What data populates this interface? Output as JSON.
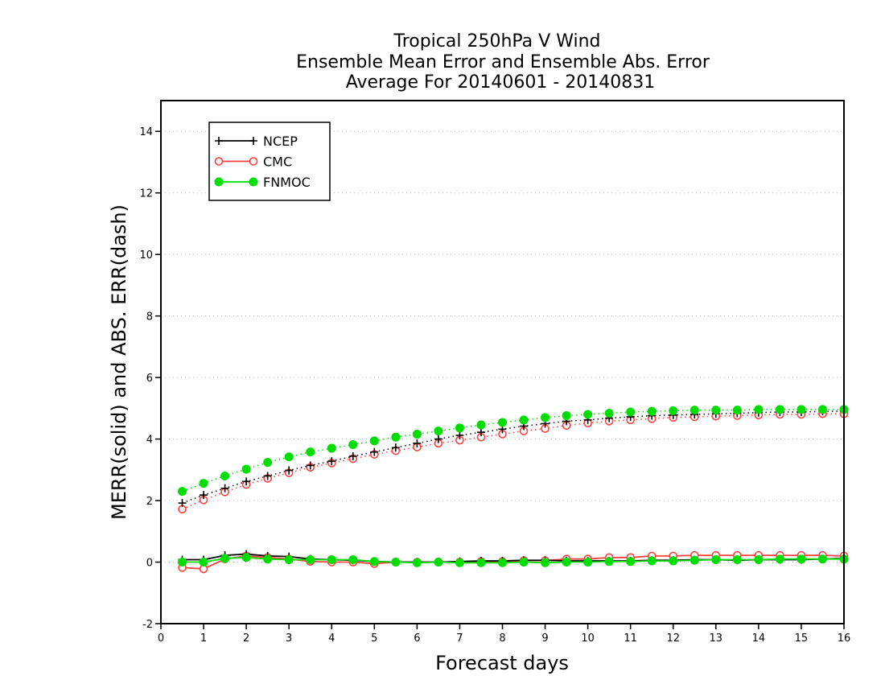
{
  "chart_data": {
    "type": "line",
    "title": [
      "Tropical 250hPa V Wind",
      "Ensemble Mean Error and Ensemble Abs. Error",
      "Average For 20140601 - 20140831"
    ],
    "xlabel": "Forecast days",
    "ylabel": "MERR(solid) and ABS. ERR(dash)",
    "xlim": [
      0,
      16
    ],
    "ylim": [
      -2,
      15
    ],
    "xticks": [
      0,
      1,
      2,
      3,
      4,
      5,
      6,
      7,
      8,
      9,
      10,
      11,
      12,
      13,
      14,
      15,
      16
    ],
    "yticks": [
      -2,
      0,
      2,
      4,
      6,
      8,
      10,
      12,
      14
    ],
    "grid": "horizontal dotted",
    "legend_position": "top-left",
    "x": [
      0.5,
      1,
      1.5,
      2,
      2.5,
      3,
      3.5,
      4,
      4.5,
      5,
      5.5,
      6,
      6.5,
      7,
      7.5,
      8,
      8.5,
      9,
      9.5,
      10,
      10.5,
      11,
      11.5,
      12,
      12.5,
      13,
      13.5,
      14,
      14.5,
      15,
      15.5,
      16
    ],
    "series": [
      {
        "name": "NCEP",
        "color": "#000000",
        "marker": "plus",
        "mean_error": [
          0.08,
          0.08,
          0.22,
          0.26,
          0.2,
          0.18,
          0.1,
          0.08,
          0.06,
          0.02,
          0.0,
          0.0,
          0.0,
          0.02,
          0.04,
          0.04,
          0.06,
          0.06,
          0.04,
          0.04,
          0.04,
          0.04,
          0.06,
          0.06,
          0.08,
          0.08,
          0.06,
          0.08,
          0.08,
          0.08,
          0.1,
          0.12
        ],
        "abs_error": [
          1.92,
          2.18,
          2.4,
          2.62,
          2.8,
          2.98,
          3.14,
          3.28,
          3.44,
          3.58,
          3.72,
          3.86,
          4.0,
          4.12,
          4.22,
          4.32,
          4.42,
          4.5,
          4.58,
          4.62,
          4.68,
          4.72,
          4.76,
          4.78,
          4.8,
          4.82,
          4.84,
          4.86,
          4.88,
          4.88,
          4.9,
          4.9
        ]
      },
      {
        "name": "CMC",
        "color": "#ff4040",
        "marker": "open-circle",
        "mean_error": [
          -0.18,
          -0.22,
          0.1,
          0.2,
          0.15,
          0.1,
          0.02,
          0.0,
          0.0,
          -0.05,
          0.0,
          0.0,
          0.0,
          0.0,
          0.02,
          0.02,
          0.05,
          0.05,
          0.1,
          0.1,
          0.15,
          0.15,
          0.2,
          0.2,
          0.22,
          0.22,
          0.22,
          0.22,
          0.22,
          0.22,
          0.22,
          0.2
        ],
        "abs_error": [
          1.72,
          2.02,
          2.28,
          2.52,
          2.72,
          2.9,
          3.08,
          3.22,
          3.36,
          3.5,
          3.62,
          3.74,
          3.86,
          3.96,
          4.06,
          4.16,
          4.26,
          4.34,
          4.44,
          4.52,
          4.58,
          4.62,
          4.66,
          4.7,
          4.72,
          4.74,
          4.76,
          4.78,
          4.8,
          4.8,
          4.82,
          4.82
        ]
      },
      {
        "name": "FNMOC",
        "color": "#00dd00",
        "marker": "filled-circle",
        "mean_error": [
          0.0,
          0.0,
          0.12,
          0.15,
          0.1,
          0.08,
          0.08,
          0.08,
          0.08,
          0.02,
          0.0,
          -0.02,
          0.0,
          -0.02,
          -0.02,
          -0.02,
          0.0,
          -0.02,
          0.0,
          0.0,
          0.02,
          0.02,
          0.04,
          0.04,
          0.06,
          0.08,
          0.08,
          0.08,
          0.1,
          0.1,
          0.1,
          0.1
        ],
        "abs_error": [
          2.3,
          2.56,
          2.8,
          3.02,
          3.24,
          3.42,
          3.58,
          3.7,
          3.82,
          3.94,
          4.06,
          4.16,
          4.26,
          4.36,
          4.46,
          4.54,
          4.62,
          4.7,
          4.76,
          4.8,
          4.84,
          4.88,
          4.9,
          4.92,
          4.94,
          4.94,
          4.94,
          4.96,
          4.96,
          4.96,
          4.96,
          4.96
        ]
      }
    ]
  }
}
